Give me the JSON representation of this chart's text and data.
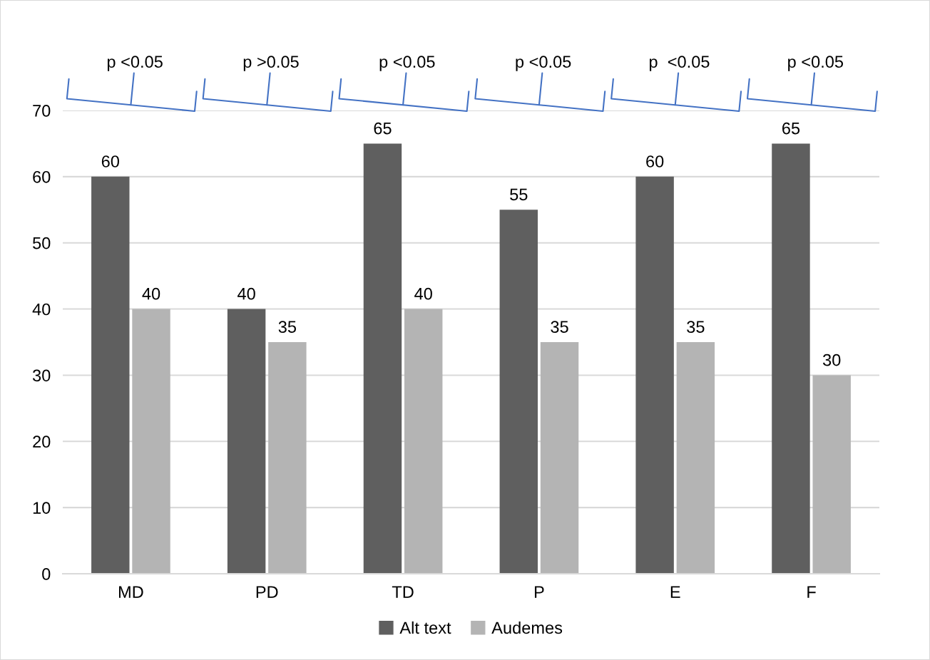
{
  "chart_data": {
    "type": "bar",
    "categories": [
      "MD",
      "PD",
      "TD",
      "P",
      "E",
      "F"
    ],
    "series": [
      {
        "name": "Alt text",
        "color": "#5f5f5f",
        "values": [
          60,
          40,
          65,
          55,
          60,
          65
        ]
      },
      {
        "name": "Audemes",
        "color": "#b4b4b4",
        "values": [
          40,
          35,
          40,
          35,
          35,
          30
        ]
      }
    ],
    "ylim": [
      0,
      70
    ],
    "yticks": [
      0,
      10,
      20,
      30,
      40,
      50,
      60,
      70
    ],
    "grid": "y",
    "legend": "bottom",
    "data_labels": true,
    "annotations": [
      "p <0.05",
      "p >0.05",
      "p <0.05",
      "p <0.05",
      "p  <0.05",
      "p <0.05"
    ]
  }
}
